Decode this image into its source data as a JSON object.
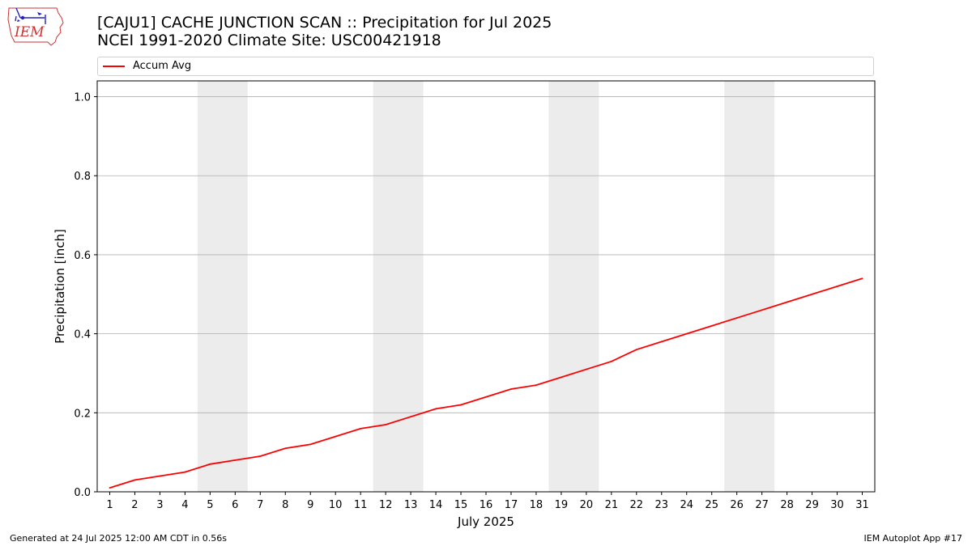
{
  "header": {
    "title_line1": "[CAJU1] CACHE JUNCTION SCAN :: Precipitation for Jul 2025",
    "title_line2": "NCEI 1991-2020 Climate Site: USC00421918"
  },
  "logo": {
    "text": "IEM",
    "icon": "iem-logo"
  },
  "footer": {
    "left": "Generated at 24 Jul 2025 12:00 AM CDT in 0.56s",
    "right": "IEM Autoplot App #17"
  },
  "chart_data": {
    "type": "line",
    "xlabel": "July 2025",
    "ylabel": "Precipitation [inch]",
    "xlim": [
      0.5,
      31.5
    ],
    "ylim": [
      0.0,
      1.04
    ],
    "yticks": [
      0.0,
      0.2,
      0.4,
      0.6,
      0.8,
      1.0
    ],
    "ytick_labels": [
      "0.0",
      "0.2",
      "0.4",
      "0.6",
      "0.8",
      "1.0"
    ],
    "x": [
      1,
      2,
      3,
      4,
      5,
      6,
      7,
      8,
      9,
      10,
      11,
      12,
      13,
      14,
      15,
      16,
      17,
      18,
      19,
      20,
      21,
      22,
      23,
      24,
      25,
      26,
      27,
      28,
      29,
      30,
      31
    ],
    "xtick_labels": [
      "1",
      "2",
      "3",
      "4",
      "5",
      "6",
      "7",
      "8",
      "9",
      "10",
      "11",
      "12",
      "13",
      "14",
      "15",
      "16",
      "17",
      "18",
      "19",
      "20",
      "21",
      "22",
      "23",
      "24",
      "25",
      "26",
      "27",
      "28",
      "29",
      "30",
      "31"
    ],
    "weekend_bands": [
      [
        4.5,
        6.5
      ],
      [
        11.5,
        13.5
      ],
      [
        18.5,
        20.5
      ],
      [
        25.5,
        27.5
      ]
    ],
    "grid": "y",
    "legend_position": "top",
    "series": [
      {
        "name": "Accum Avg",
        "color": "#ff0000",
        "values": [
          0.01,
          0.03,
          0.04,
          0.05,
          0.07,
          0.08,
          0.09,
          0.11,
          0.12,
          0.14,
          0.16,
          0.17,
          0.19,
          0.21,
          0.22,
          0.24,
          0.26,
          0.27,
          0.29,
          0.31,
          0.33,
          0.36,
          0.38,
          0.4,
          0.42,
          0.44,
          0.46,
          0.48,
          0.5,
          0.52,
          0.54
        ]
      }
    ],
    "colors": {
      "band": "#ececec",
      "grid": "#b0b0b0"
    }
  }
}
